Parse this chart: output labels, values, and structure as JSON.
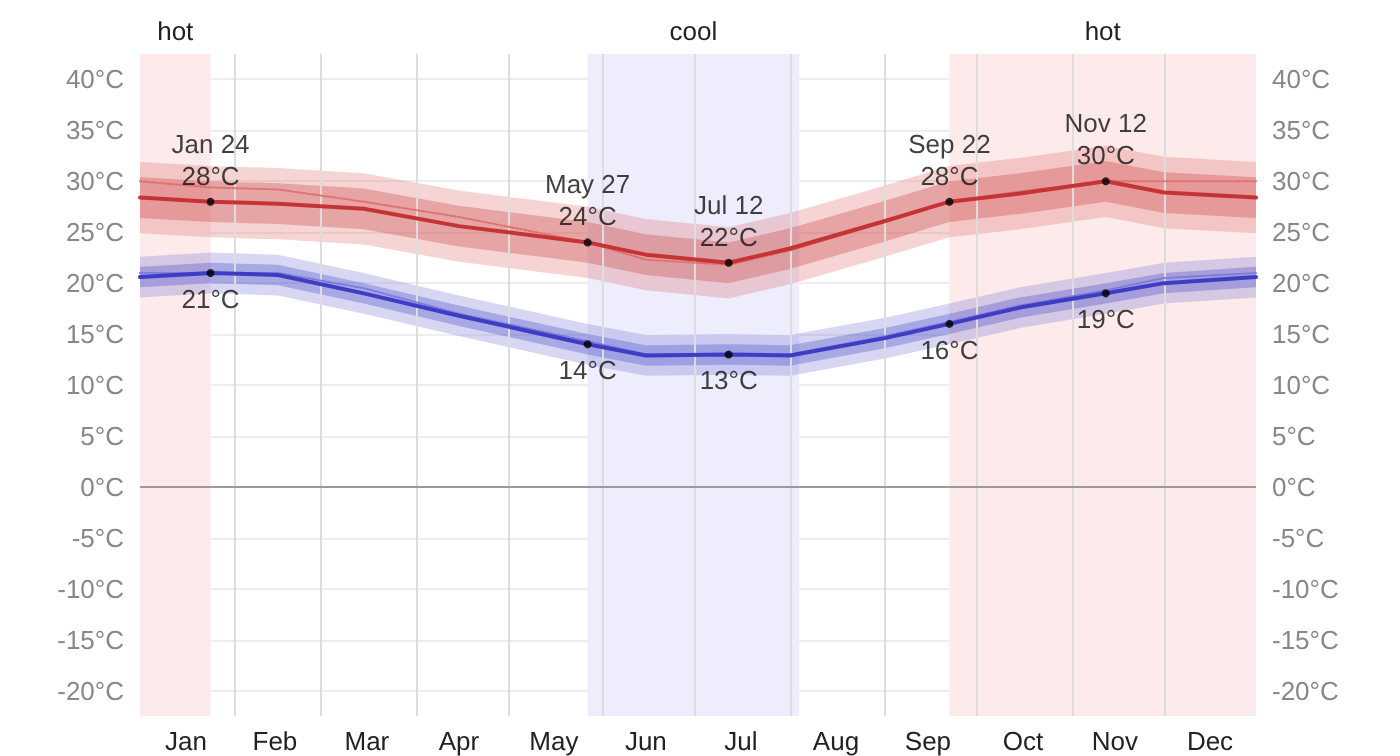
{
  "chart_data": {
    "type": "line",
    "x": [
      "--01-01",
      "--01-24",
      "--02-15",
      "--03-15",
      "--04-15",
      "--05-27",
      "--06-15",
      "--07-12",
      "--08-01",
      "--09-01",
      "--09-22",
      "--10-15",
      "--11-12",
      "--12-01",
      "--12-31"
    ],
    "series": [
      {
        "color": "#e07070",
        "line_style": "dotted",
        "values": [
          30,
          29.4,
          29.2,
          28,
          26.5,
          24,
          22.3,
          21.8,
          23.2,
          26,
          28,
          29,
          30,
          30,
          30
        ],
        "lower": [
          24.9,
          24.5,
          24.3,
          23.8,
          22.1,
          20.5,
          19.3,
          18.5,
          19.9,
          22.6,
          24.5,
          25.3,
          26.5,
          25.4,
          24.9
        ],
        "upper": [
          31.9,
          31.5,
          31.3,
          30.8,
          29.1,
          27.5,
          26.3,
          25.5,
          26.9,
          29.6,
          31.5,
          32.3,
          33.5,
          32.4,
          31.9
        ]
      },
      {
        "color": "#7a7ad8",
        "line_style": "dotted",
        "values": [
          21,
          21,
          21,
          19.5,
          17,
          14.3,
          13,
          13,
          13,
          14.8,
          16.2,
          17.8,
          19.3,
          20.5,
          21
        ],
        "lower": [
          18.6,
          19,
          18.8,
          17,
          14.8,
          12,
          10.9,
          11,
          10.9,
          12.6,
          14,
          15.6,
          17,
          18,
          18.6
        ],
        "upper": [
          22.6,
          23,
          22.8,
          21,
          18.8,
          16,
          14.9,
          15,
          14.9,
          16.6,
          18,
          19.6,
          21,
          22,
          22.6
        ]
      },
      {
        "color": "#c43434",
        "values": [
          28.4,
          28,
          27.8,
          27.3,
          25.6,
          24,
          22.8,
          22,
          23.4,
          26.1,
          28,
          28.8,
          30,
          28.9,
          28.4
        ],
        "lower": [
          26.4,
          26,
          25.8,
          25.3,
          23.6,
          22,
          20.8,
          20,
          21.4,
          24.1,
          26,
          26.8,
          28,
          26.9,
          26.4
        ],
        "upper": [
          30.4,
          30,
          29.8,
          29.3,
          27.6,
          26,
          24.8,
          24,
          25.4,
          28.1,
          30,
          30.8,
          32,
          30.9,
          30.4
        ]
      },
      {
        "color": "#3c3cc4",
        "values": [
          20.6,
          21,
          20.8,
          19,
          16.8,
          14,
          12.9,
          13,
          12.9,
          14.6,
          16,
          17.6,
          19,
          20,
          20.6
        ],
        "lower": [
          19.6,
          20,
          19.8,
          18,
          15.8,
          13,
          11.9,
          12,
          11.9,
          13.6,
          15,
          16.6,
          18,
          19,
          19.6
        ],
        "upper": [
          21.6,
          22,
          21.8,
          20,
          17.8,
          15,
          13.9,
          14,
          13.9,
          15.6,
          17,
          18.6,
          20,
          21,
          21.6
        ]
      }
    ],
    "xlim": [
      "--01-01",
      "--12-31"
    ],
    "xticks": [
      {
        "value": "--01-16",
        "label": "Jan"
      },
      {
        "value": "--02-01",
        "label": null
      },
      {
        "value": "--02-14",
        "label": "Feb"
      },
      {
        "value": "--03-01",
        "label": null
      },
      {
        "value": "--03-16",
        "label": "Mar"
      },
      {
        "value": "--04-01",
        "label": null
      },
      {
        "value": "--04-15",
        "label": "Apr"
      },
      {
        "value": "--05-01",
        "label": null
      },
      {
        "value": "--05-16",
        "label": "May"
      },
      {
        "value": "--06-01",
        "label": null
      },
      {
        "value": "--06-15",
        "label": "Jun"
      },
      {
        "value": "--07-01",
        "label": null
      },
      {
        "value": "--07-16",
        "label": "Jul"
      },
      {
        "value": "--08-01",
        "label": null
      },
      {
        "value": "--08-16",
        "label": "Aug"
      },
      {
        "value": "--09-01",
        "label": null
      },
      {
        "value": "--09-15",
        "label": "Sep"
      },
      {
        "value": "--10-01",
        "label": null
      },
      {
        "value": "--10-16",
        "label": "Oct"
      },
      {
        "value": "--11-01",
        "label": null
      },
      {
        "value": "--11-15",
        "label": "Nov"
      },
      {
        "value": "--12-01",
        "label": null
      },
      {
        "value": "--12-16",
        "label": "Dec"
      }
    ],
    "ylim": [
      -22.5,
      42.5
    ],
    "yticks": [
      {
        "value": -20,
        "label": "-20°C"
      },
      {
        "value": -15,
        "label": "-15°C"
      },
      {
        "value": -10,
        "label": "-10°C"
      },
      {
        "value": -5,
        "label": "-5°C"
      },
      {
        "value": 0,
        "label": "0°C"
      },
      {
        "value": 5,
        "label": "5°C"
      },
      {
        "value": 10,
        "label": "10°C"
      },
      {
        "value": 15,
        "label": "15°C"
      },
      {
        "value": 20,
        "label": "20°C"
      },
      {
        "value": 25,
        "label": "25°C"
      },
      {
        "value": 30,
        "label": "30°C"
      },
      {
        "value": 35,
        "label": "35°C"
      },
      {
        "value": 40,
        "label": "40°C"
      }
    ],
    "y2lim": [
      -22.5,
      42.5
    ],
    "y2ticks": [
      {
        "value": -20,
        "label": "-20°C"
      },
      {
        "value": -15,
        "label": "-15°C"
      },
      {
        "value": -10,
        "label": "-10°C"
      },
      {
        "value": -5,
        "label": "-5°C"
      },
      {
        "value": 0,
        "label": "0°C"
      },
      {
        "value": 5,
        "label": "5°C"
      },
      {
        "value": 10,
        "label": "10°C"
      },
      {
        "value": 15,
        "label": "15°C"
      },
      {
        "value": 20,
        "label": "20°C"
      },
      {
        "value": 25,
        "label": "25°C"
      },
      {
        "value": 30,
        "label": "30°C"
      },
      {
        "value": 35,
        "label": "35°C"
      },
      {
        "value": 40,
        "label": "40°C"
      }
    ],
    "bands": [
      {
        "axis": "x",
        "from": "--01-01",
        "to": "--01-24",
        "label": "hot",
        "color": "#fdeaea"
      },
      {
        "axis": "x",
        "from": "--05-27",
        "to": "--08-04",
        "label": "cool",
        "color": "#ededfd"
      },
      {
        "axis": "x",
        "from": "--09-22",
        "to": "--12-31",
        "label": "hot",
        "color": "#fdeaea"
      }
    ],
    "ref_lines": [
      {
        "axis": "y",
        "value": 0,
        "label": null,
        "color": "#9a9a9a"
      }
    ],
    "annotations": [
      {
        "text": "Jan 24\n28°C",
        "x": "--01-24",
        "y": 28
      },
      {
        "text": "May 27\n24°C",
        "x": "--05-27",
        "y": 24
      },
      {
        "text": "Jul 12\n22°C",
        "x": "--07-12",
        "y": 22
      },
      {
        "text": "Sep 22\n28°C",
        "x": "--09-22",
        "y": 28
      },
      {
        "text": "Nov 12\n30°C",
        "x": "--11-12",
        "y": 30
      },
      {
        "text": "21°C",
        "x": "--01-24",
        "y": 21
      },
      {
        "text": "14°C",
        "x": "--05-27",
        "y": 14
      },
      {
        "text": "13°C",
        "x": "--07-12",
        "y": 13
      },
      {
        "text": "16°C",
        "x": "--09-22",
        "y": 16
      },
      {
        "text": "19°C",
        "x": "--11-12",
        "y": 19
      }
    ],
    "grid": true,
    "marker": "none",
    "line_style": "solid"
  }
}
